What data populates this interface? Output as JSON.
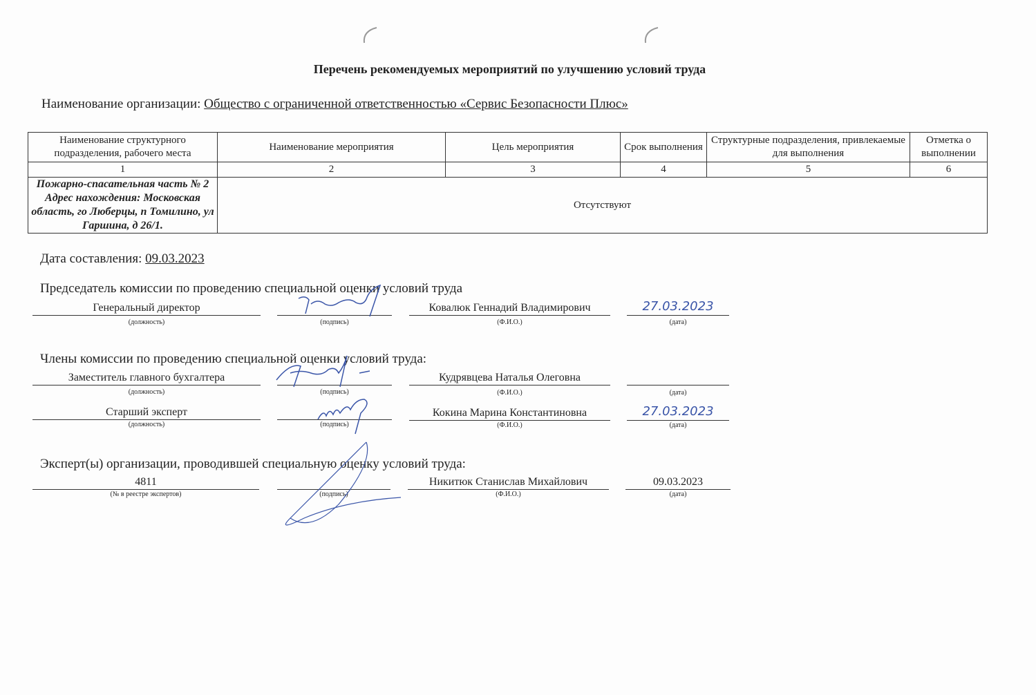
{
  "title": "Перечень рекомендуемых мероприятий по улучшению условий труда",
  "org": {
    "label": "Наименование организации:",
    "value": "Общество с ограниченной ответственностью «Сервис Безопасности Плюс»"
  },
  "table": {
    "headers": [
      "Наименование структурного подразделения, рабочего места",
      "Наименование мероприятия",
      "Цель мероприятия",
      "Срок выполнения",
      "Структурные подразделения, привлекаемые для выполнения",
      "Отметка о выполнении"
    ],
    "numbers": [
      "1",
      "2",
      "3",
      "4",
      "5",
      "6"
    ],
    "rows": [
      {
        "unit": "Пожарно-спасательная часть № 2 Адрес нахождения: Московская область, го Люберцы, п Томилино, ул Гаршина, д 26/1.",
        "value": "Отсутствуют"
      }
    ]
  },
  "date": {
    "label": "Дата составления:",
    "value": "09.03.2023"
  },
  "captions": {
    "position": "(должность)",
    "signature": "(подпись)",
    "name": "(Ф.И.О.)",
    "date": "(дата)",
    "registry": "(№ в реестре экспертов)"
  },
  "chair": {
    "heading": "Председатель комиссии по проведению специальной оценки условий труда",
    "position": "Генеральный директор",
    "name": "Ковалюк Геннадий Владимирович",
    "date": "27.03.2023"
  },
  "members": {
    "heading": "Члены комиссии по проведению специальной оценки условий труда:",
    "list": [
      {
        "position": "Заместитель главного бухгалтера",
        "name": "Кудрявцева Наталья Олеговна",
        "date": ""
      },
      {
        "position": "Старший эксперт",
        "name": "Кокина Марина Константиновна",
        "date": "27.03.2023"
      }
    ]
  },
  "experts": {
    "heading": "Эксперт(ы) организации, проводившей специальную оценку условий труда:",
    "registry": "4811",
    "name": "Никитюк Станислав Михайлович",
    "date": "09.03.2023"
  },
  "colors": {
    "ink": "#3a55a8"
  }
}
